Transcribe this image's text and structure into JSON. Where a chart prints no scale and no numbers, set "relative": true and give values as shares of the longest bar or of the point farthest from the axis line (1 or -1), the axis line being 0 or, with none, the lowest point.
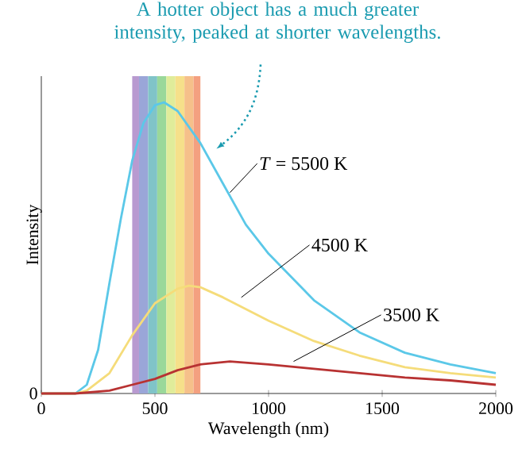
{
  "chart_data": {
    "type": "line",
    "relative": true,
    "xlabel": "Wavelength (nm)",
    "ylabel": "Intensity",
    "xlim": [
      0,
      2000
    ],
    "xticks": [
      0,
      500,
      1000,
      1500,
      2000
    ],
    "grid": false,
    "marker": "none",
    "line_style": "solid",
    "series": [
      {
        "name": "*T* = 5500 K",
        "color": "#5bc8e8",
        "x": [
          0,
          150,
          200,
          250,
          300,
          350,
          400,
          450,
          500,
          540,
          600,
          700,
          800,
          900,
          1000,
          1200,
          1400,
          1600,
          1800,
          2000
        ],
        "values": [
          0,
          0,
          0.03,
          0.15,
          0.38,
          0.6,
          0.8,
          0.93,
          0.99,
          1.0,
          0.97,
          0.86,
          0.72,
          0.58,
          0.48,
          0.32,
          0.21,
          0.14,
          0.1,
          0.07
        ]
      },
      {
        "name": "4500 K",
        "color": "#f5dc7a",
        "x": [
          0,
          150,
          200,
          300,
          400,
          500,
          600,
          650,
          700,
          800,
          1000,
          1200,
          1400,
          1600,
          1800,
          2000
        ],
        "values": [
          0,
          0,
          0.01,
          0.07,
          0.2,
          0.31,
          0.36,
          0.37,
          0.365,
          0.33,
          0.25,
          0.18,
          0.13,
          0.09,
          0.07,
          0.055
        ]
      },
      {
        "name": "3500 K",
        "color": "#b83232",
        "x": [
          0,
          150,
          300,
          400,
          500,
          600,
          700,
          830,
          1000,
          1200,
          1400,
          1600,
          1800,
          2000
        ],
        "values": [
          0,
          0,
          0.01,
          0.03,
          0.05,
          0.08,
          0.1,
          0.11,
          0.1,
          0.085,
          0.07,
          0.055,
          0.045,
          0.03
        ]
      }
    ],
    "bands": [
      {
        "axis": "x",
        "from": 400,
        "to": 430,
        "color": "#b89ad0"
      },
      {
        "axis": "x",
        "from": 430,
        "to": 470,
        "color": "#9aa6d8"
      },
      {
        "axis": "x",
        "from": 470,
        "to": 510,
        "color": "#80c4c8"
      },
      {
        "axis": "x",
        "from": 510,
        "to": 550,
        "color": "#9ad89a"
      },
      {
        "axis": "x",
        "from": 550,
        "to": 590,
        "color": "#e0ec9a"
      },
      {
        "axis": "x",
        "from": 590,
        "to": 630,
        "color": "#f6e08a"
      },
      {
        "axis": "x",
        "from": 630,
        "to": 670,
        "color": "#f6c08a"
      },
      {
        "axis": "x",
        "from": 670,
        "to": 700,
        "color": "#f4a080"
      }
    ],
    "annotations": [
      "A hotter object has a much greater intensity, peaked at shorter wavelengths.",
      "0"
    ]
  }
}
